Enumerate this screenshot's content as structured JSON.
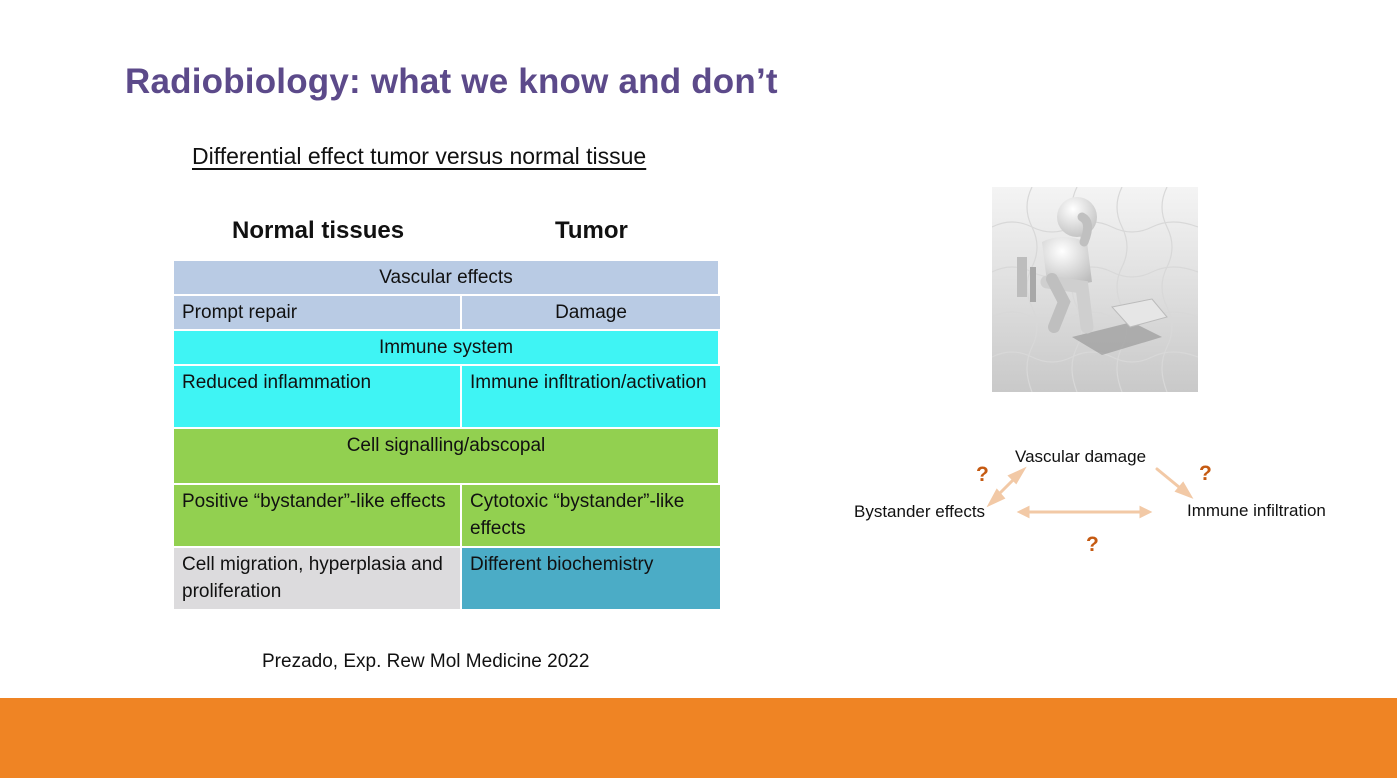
{
  "slide": {
    "title": "Radiobiology: what we know and don’t",
    "subtitle": "Differential effect tumor versus normal tissue",
    "col_normal": "Normal tissues",
    "col_tumor": "Tumor"
  },
  "table": {
    "vascular": "Vascular effects",
    "vascular_left": "Prompt repair",
    "vascular_right": "Damage",
    "immune": "Immune system",
    "immune_left": "Reduced inflammation",
    "immune_right": "Immune infltration/activation",
    "signal": "Cell signalling/abscopal",
    "signal_left": "Positive “bystander”-like effects",
    "signal_right": "Cytotoxic “bystander”-like effects",
    "bottom_left": "Cell migration, hyperplasia and proliferation",
    "bottom_right": "Different biochemistry"
  },
  "citation": "Prezado, Exp. Rew Mol Medicine 2022",
  "diagram": {
    "top": "Vascular damage",
    "left": "Bystander effects",
    "right": "Immune infiltration",
    "q": "?"
  },
  "colors": {
    "title": "#5c4a8a",
    "footer": "#ef8424",
    "question": "#c55a11",
    "vascular": "#b9cbe4",
    "immune": "#3ff4f4",
    "signal": "#92d050",
    "normal_grey": "#dcdbdd",
    "tumor_teal": "#4bacc6"
  },
  "icons": {
    "puzzle": "thinking-figure-puzzle-image"
  }
}
